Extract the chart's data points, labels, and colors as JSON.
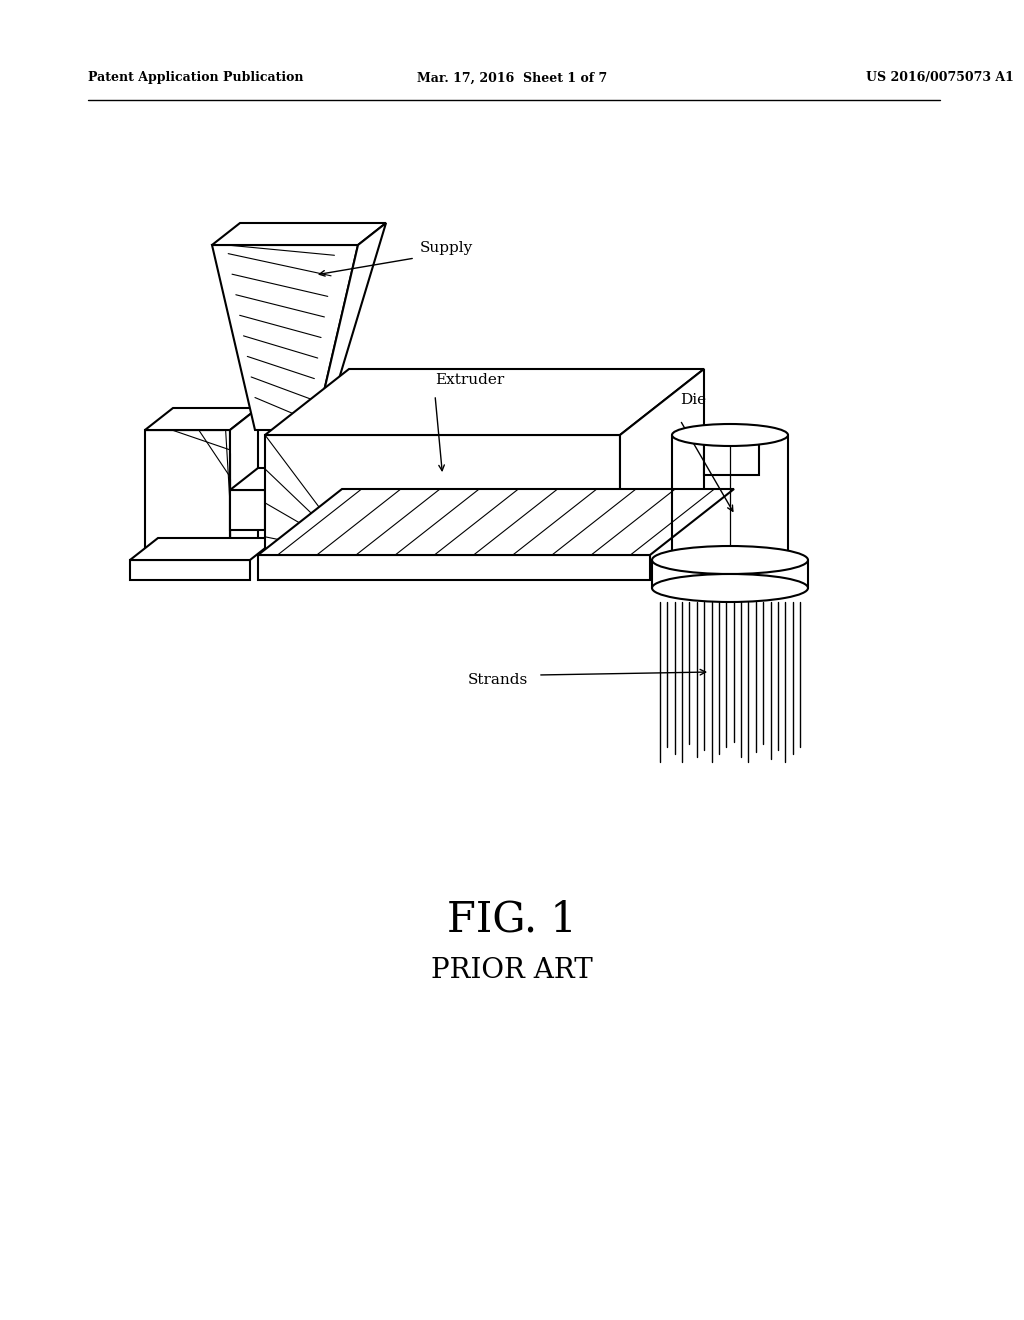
{
  "bg_color": "#ffffff",
  "line_color": "#000000",
  "header_left": "Patent Application Publication",
  "header_center": "Mar. 17, 2016  Sheet 1 of 7",
  "header_right": "US 2016/0075073 A1",
  "fig_label": "FIG. 1",
  "fig_sublabel": "PRIOR ART",
  "labels": {
    "supply": "Supply",
    "extruder": "Extruder",
    "die": "Die",
    "strands": "Strands"
  }
}
